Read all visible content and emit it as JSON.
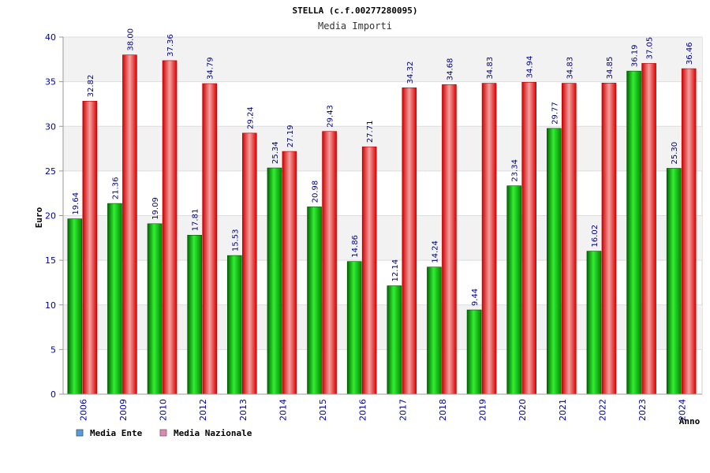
{
  "chart_data": {
    "type": "bar",
    "title": "STELLA (c.f.00277280095)",
    "subtitle": "Media Importi",
    "ylabel": "Euro",
    "xlabel": "Anno",
    "ylim": [
      0,
      40
    ],
    "yticks": [
      0,
      5,
      10,
      15,
      20,
      25,
      30,
      35,
      40
    ],
    "categories": [
      "2006",
      "2009",
      "2010",
      "2012",
      "2013",
      "2014",
      "2015",
      "2016",
      "2017",
      "2018",
      "2019",
      "2020",
      "2021",
      "2022",
      "2023",
      "2024"
    ],
    "series": [
      {
        "name": "Media Ente",
        "color": "#00cc00",
        "legend_color": "#5b9bd5",
        "values": [
          19.64,
          21.36,
          19.09,
          17.81,
          15.53,
          25.34,
          20.98,
          14.86,
          12.14,
          14.24,
          9.44,
          23.34,
          29.77,
          16.02,
          36.19,
          25.3
        ],
        "labels": [
          "19.64",
          "21.36",
          "19.09",
          "17.81",
          "15.53",
          "25.34",
          "20.98",
          "14.86",
          "12.14",
          "14.24",
          "9.44",
          "23.34",
          "29.77",
          "16.02",
          "36.19",
          "25.30"
        ]
      },
      {
        "name": "Media Nazionale",
        "color": "#ee1111",
        "legend_color": "#d98cb3",
        "values": [
          32.82,
          38.0,
          37.36,
          34.79,
          29.24,
          27.19,
          29.43,
          27.71,
          34.32,
          34.68,
          34.83,
          34.94,
          34.83,
          34.85,
          37.05,
          36.46
        ],
        "labels": [
          "32.82",
          "38.00",
          "37.36",
          "34.79",
          "29.24",
          "27.19",
          "29.43",
          "27.71",
          "34.32",
          "34.68",
          "34.83",
          "34.94",
          "34.83",
          "34.85",
          "37.05",
          "36.46"
        ]
      }
    ],
    "grid": true,
    "legend_position": "bottom-left"
  }
}
